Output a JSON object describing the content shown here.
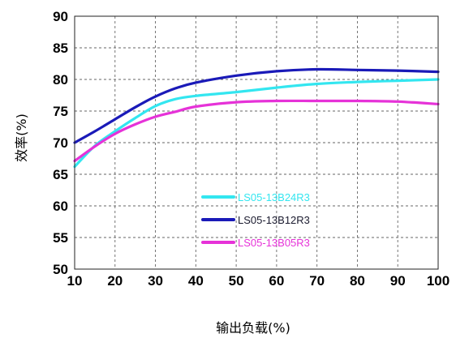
{
  "chart_data": {
    "type": "line",
    "title": "",
    "xlabel": "输出负载(%)",
    "ylabel": "效率(%)",
    "xlim": [
      10,
      100
    ],
    "ylim": [
      50,
      90
    ],
    "xticks": [
      10,
      20,
      30,
      40,
      50,
      60,
      70,
      80,
      90,
      100
    ],
    "yticks": [
      50,
      55,
      60,
      65,
      70,
      75,
      80,
      85,
      90
    ],
    "grid": true,
    "legend_position": "inside-lower-center",
    "series": [
      {
        "name": "LS05-13B24R3",
        "color": "#33e6f0",
        "x": [
          10,
          15,
          20,
          25,
          30,
          35,
          40,
          50,
          60,
          70,
          80,
          90,
          100
        ],
        "y": [
          66.2,
          69.5,
          71.8,
          73.9,
          75.8,
          76.9,
          77.4,
          78.0,
          78.7,
          79.3,
          79.6,
          79.8,
          80.0
        ]
      },
      {
        "name": "LS05-13B12R3",
        "color": "#1a1ab8",
        "x": [
          10,
          15,
          20,
          25,
          30,
          35,
          40,
          50,
          60,
          70,
          80,
          90,
          100
        ],
        "y": [
          70.0,
          71.8,
          73.7,
          75.6,
          77.3,
          78.6,
          79.5,
          80.6,
          81.3,
          81.6,
          81.5,
          81.4,
          81.2
        ]
      },
      {
        "name": "LS05-13B05R3",
        "color": "#e632d8",
        "x": [
          10,
          15,
          20,
          25,
          30,
          35,
          40,
          50,
          60,
          70,
          80,
          90,
          100
        ],
        "y": [
          67.1,
          69.4,
          71.4,
          72.9,
          74.1,
          74.9,
          75.7,
          76.4,
          76.6,
          76.6,
          76.6,
          76.5,
          76.1
        ]
      }
    ]
  }
}
